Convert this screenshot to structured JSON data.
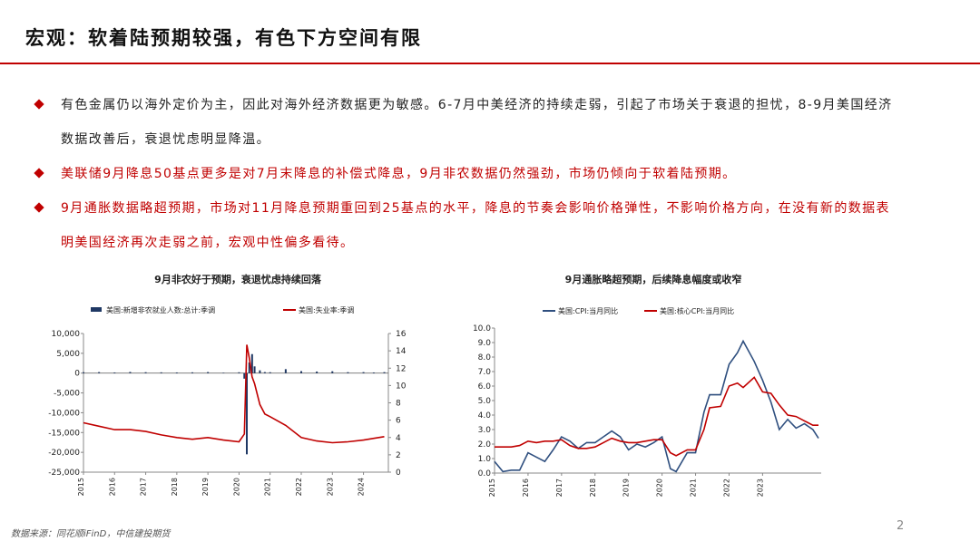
{
  "header": {
    "title": "宏观：软着陆预期较强，有色下方空间有限"
  },
  "bullets": [
    {
      "text": "有色金属仍以海外定价为主，因此对海外经济数据更为敏感。6-7月中美经济的持续走弱，引起了市场关于衰退的担忧，8-9月美国经济数据改善后，衰退忧虑明显降温。"
    },
    {
      "text": "美联储9月降息50基点更多是对7月末降息的补偿式降息，9月非农数据仍然强劲，市场仍倾向于软着陆预期。"
    },
    {
      "text": "9月通胀数据略超预期，市场对11月降息预期重回到25基点的水平，降息的节奏会影响价格弹性，不影响价格方向，在没有新的数据表明美国经济再次走弱之前，宏观中性偏多看待。"
    }
  ],
  "chart_data": [
    {
      "type": "combo",
      "title": "9月非农好于预期，衰退忧虑持续回落",
      "x": [
        2015,
        2015.5,
        2016,
        2016.5,
        2017,
        2017.5,
        2018,
        2018.5,
        2019,
        2019.5,
        2020,
        2020.17,
        2020.25,
        2020.33,
        2020.42,
        2020.5,
        2020.67,
        2020.83,
        2021,
        2021.5,
        2022,
        2022.5,
        2023,
        2023.5,
        2024,
        2024.33,
        2024.67
      ],
      "xlim": [
        2015,
        2024.8
      ],
      "xticks": [
        2015,
        2016,
        2017,
        2018,
        2019,
        2020,
        2021,
        2022,
        2023,
        2024
      ],
      "ylim": [
        -25000,
        10000
      ],
      "yticks": [
        {
          "value": -25000,
          "label": "-25,000"
        },
        {
          "value": -20000,
          "label": "-20,000"
        },
        {
          "value": -15000,
          "label": "-15,000"
        },
        {
          "value": -10000,
          "label": "-10,000"
        },
        {
          "value": -5000,
          "label": "-5,000"
        },
        0,
        {
          "value": 5000,
          "label": "5,000"
        },
        {
          "value": 10000,
          "label": "10,000"
        }
      ],
      "y2lim": [
        0,
        16
      ],
      "y2ticks": [
        0,
        2,
        4,
        6,
        8,
        10,
        12,
        14,
        16
      ],
      "grid": false,
      "legend": "top",
      "series": [
        {
          "name": "美国:新增非农就业人数:总计:季调",
          "type": "bar",
          "color": "#1f3864",
          "values": [
            230,
            260,
            170,
            300,
            230,
            200,
            170,
            200,
            270,
            110,
            215,
            -1400,
            -20500,
            2700,
            4800,
            1700,
            700,
            260,
            230,
            1000,
            500,
            400,
            470,
            240,
            250,
            170,
            250
          ]
        },
        {
          "name": "美国:失业率:季调",
          "type": "line",
          "axis": "y2",
          "color": "#c00000",
          "values": [
            5.7,
            5.3,
            4.9,
            4.9,
            4.7,
            4.3,
            4.0,
            3.8,
            4.0,
            3.7,
            3.5,
            4.4,
            14.7,
            13.2,
            11.0,
            10.2,
            7.8,
            6.7,
            6.4,
            5.4,
            4.0,
            3.6,
            3.4,
            3.5,
            3.7,
            3.9,
            4.1
          ]
        }
      ]
    },
    {
      "type": "line",
      "title": "9月通胀略超预期，后续降息幅度或收窄",
      "x": [
        2015,
        2015.25,
        2015.5,
        2015.75,
        2016,
        2016.25,
        2016.5,
        2016.75,
        2017,
        2017.25,
        2017.5,
        2017.75,
        2018,
        2018.25,
        2018.5,
        2018.75,
        2019,
        2019.25,
        2019.5,
        2019.75,
        2020,
        2020.25,
        2020.42,
        2020.75,
        2021,
        2021.25,
        2021.42,
        2021.75,
        2022,
        2022.25,
        2022.42,
        2022.75,
        2023,
        2023.25,
        2023.5,
        2023.75,
        2024,
        2024.25,
        2024.5,
        2024.67
      ],
      "xlim": [
        2015,
        2024.75
      ],
      "xticks": [
        2015,
        2016,
        2017,
        2018,
        2019,
        2020,
        2021,
        2022,
        2023
      ],
      "ylim": [
        0,
        10
      ],
      "yticks": [
        {
          "value": 0,
          "label": "0.0"
        },
        {
          "value": 1,
          "label": "1.0"
        },
        {
          "value": 2,
          "label": "2.0"
        },
        {
          "value": 3,
          "label": "3.0"
        },
        {
          "value": 4,
          "label": "4.0"
        },
        {
          "value": 5,
          "label": "5.0"
        },
        {
          "value": 6,
          "label": "6.0"
        },
        {
          "value": 7,
          "label": "7.0"
        },
        {
          "value": 8,
          "label": "8.0"
        },
        {
          "value": 9,
          "label": "9.0"
        },
        {
          "value": 10,
          "label": "10.0"
        }
      ],
      "grid": false,
      "legend": "top",
      "series": [
        {
          "name": "美国:CPI:当月同比",
          "type": "line",
          "color": "#2f4f7f",
          "values": [
            0.8,
            0.1,
            0.2,
            0.2,
            1.4,
            1.1,
            0.8,
            1.6,
            2.5,
            2.2,
            1.7,
            2.1,
            2.1,
            2.5,
            2.9,
            2.5,
            1.6,
            2.0,
            1.8,
            2.1,
            2.5,
            0.3,
            0.1,
            1.4,
            1.4,
            4.2,
            5.4,
            5.4,
            7.5,
            8.3,
            9.1,
            7.7,
            6.4,
            4.9,
            3.0,
            3.7,
            3.1,
            3.4,
            3.0,
            2.4
          ]
        },
        {
          "name": "美国:核心CPI:当月同比",
          "type": "line",
          "color": "#c00000",
          "values": [
            1.8,
            1.8,
            1.8,
            1.9,
            2.2,
            2.1,
            2.2,
            2.2,
            2.3,
            1.9,
            1.7,
            1.7,
            1.8,
            2.1,
            2.4,
            2.2,
            2.1,
            2.1,
            2.2,
            2.3,
            2.3,
            1.4,
            1.2,
            1.6,
            1.6,
            3.0,
            4.5,
            4.6,
            6.0,
            6.2,
            5.9,
            6.6,
            5.6,
            5.5,
            4.7,
            4.0,
            3.9,
            3.6,
            3.3,
            3.3
          ]
        }
      ]
    }
  ],
  "footer": {
    "source": "数据来源：同花顺iFinD，中信建投期货",
    "page": "2"
  }
}
